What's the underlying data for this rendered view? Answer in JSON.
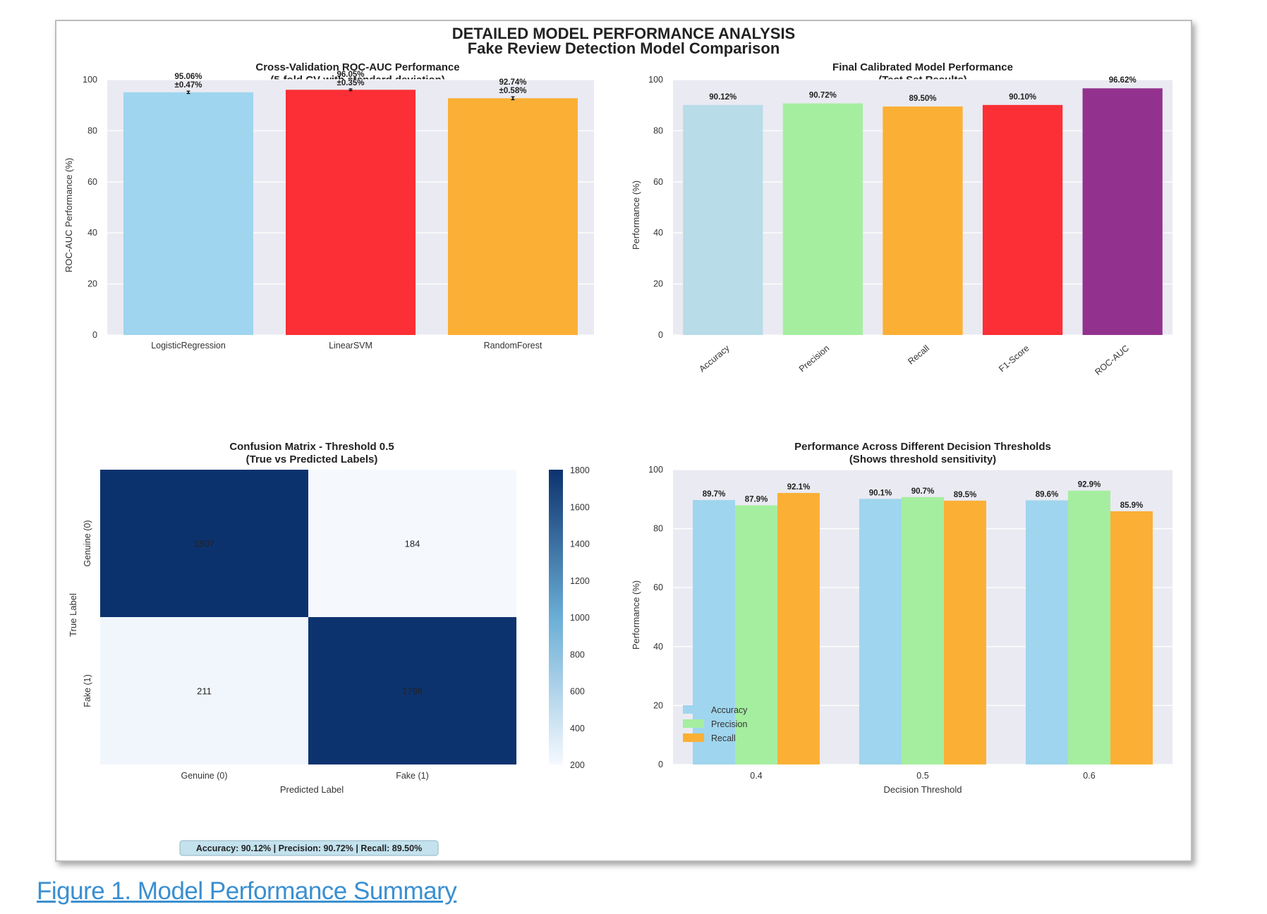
{
  "figure": {
    "title": "DETAILED MODEL PERFORMANCE ANALYSIS",
    "subtitle": "Fake Review Detection Model Comparison",
    "summary_box": "Accuracy: 90.12% | Precision: 90.72% | Recall: 89.50%"
  },
  "caption": "Figure 1. Model Performance Summary",
  "colors": {
    "plot_bg": "#eaeaf2",
    "grid": "#ffffff",
    "skyblue": "#9fd5ee",
    "red": "#fb2f35",
    "orange": "#fbb035",
    "lightblue": "#b8dce8",
    "lightgreen": "#a5eea0",
    "purple": "#93328e",
    "cm_dark": "#0c326e",
    "cm_light": "#f5f9fe",
    "summary_bg": "#c3e2ee"
  },
  "chart_data": [
    {
      "type": "bar",
      "title": "Cross-Validation ROC-AUC Performance",
      "subtitle": "(5-fold CV with standard deviation)",
      "categories": [
        "LogisticRegression",
        "LinearSVM",
        "RandomForest"
      ],
      "values": [
        95.06,
        96.05,
        92.74
      ],
      "errors": [
        0.47,
        0.35,
        0.58
      ],
      "value_labels": [
        "95.06%",
        "96.05%",
        "92.74%"
      ],
      "error_labels": [
        "±0.47%",
        "±0.35%",
        "±0.58%"
      ],
      "bar_colors": [
        "#9fd5ee",
        "#fb2f35",
        "#fbb035"
      ],
      "xlabel": "",
      "ylabel": "ROC-AUC Performance (%)",
      "ylim": [
        0,
        100
      ],
      "yticks": [
        "0",
        "20",
        "40",
        "60",
        "80",
        "100"
      ]
    },
    {
      "type": "bar",
      "title": "Final Calibrated Model Performance",
      "subtitle": "(Test Set Results)",
      "categories": [
        "Accuracy",
        "Precision",
        "Recall",
        "F1-Score",
        "ROC-AUC"
      ],
      "values": [
        90.12,
        90.72,
        89.5,
        90.1,
        96.62
      ],
      "value_labels": [
        "90.12%",
        "90.72%",
        "89.50%",
        "90.10%",
        "96.62%"
      ],
      "bar_colors": [
        "#b8dce8",
        "#a5eea0",
        "#fbb035",
        "#fb2f35",
        "#93328e"
      ],
      "xlabel": "",
      "ylabel": "Performance (%)",
      "ylim": [
        0,
        100
      ],
      "yticks": [
        "0",
        "20",
        "40",
        "60",
        "80",
        "100"
      ]
    },
    {
      "type": "heatmap",
      "title": "Confusion Matrix - Threshold 0.5",
      "subtitle": "(True vs Predicted Labels)",
      "row_labels": [
        "Genuine (0)",
        "Fake (1)"
      ],
      "col_labels": [
        "Genuine (0)",
        "Fake (1)"
      ],
      "matrix": [
        [
          1807,
          184
        ],
        [
          211,
          1798
        ]
      ],
      "cell_labels": [
        [
          "1807",
          "184"
        ],
        [
          "211",
          "1798"
        ]
      ],
      "xlabel": "Predicted Label",
      "ylabel": "True Label",
      "colorbar_range": [
        184,
        1807
      ],
      "colorbar_ticks": [
        "1800",
        "1600",
        "1400",
        "1200",
        "1000",
        "800",
        "600",
        "400",
        "200"
      ]
    },
    {
      "type": "bar",
      "title": "Performance Across Different Decision Thresholds",
      "subtitle": "(Shows threshold sensitivity)",
      "categories": [
        "0.4",
        "0.5",
        "0.6"
      ],
      "series": [
        {
          "name": "Accuracy",
          "values": [
            89.7,
            90.1,
            89.6
          ],
          "labels": [
            "89.7%",
            "90.1%",
            "89.6%"
          ],
          "color": "#9fd5ee"
        },
        {
          "name": "Precision",
          "values": [
            87.9,
            90.7,
            92.9
          ],
          "labels": [
            "87.9%",
            "90.7%",
            "92.9%"
          ],
          "color": "#a5eea0"
        },
        {
          "name": "Recall",
          "values": [
            92.1,
            89.5,
            85.9
          ],
          "labels": [
            "92.1%",
            "89.5%",
            "85.9%"
          ],
          "color": "#fbb035"
        }
      ],
      "xlabel": "Decision Threshold",
      "ylabel": "Performance (%)",
      "ylim": [
        0,
        100
      ],
      "yticks": [
        "0",
        "20",
        "40",
        "60",
        "80",
        "100"
      ],
      "legend": "lower-left"
    }
  ]
}
